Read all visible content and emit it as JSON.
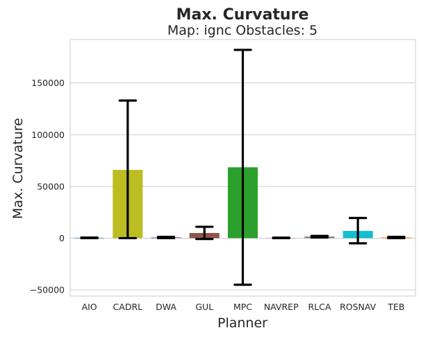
{
  "chart_data": {
    "type": "bar",
    "title": "Max. Curvature",
    "subtitle": "Map: ignc Obstacles: 5",
    "xlabel": "Planner",
    "ylabel": "Max. Curvature",
    "ylim": [
      -56000,
      192000
    ],
    "yticks": [
      -50000,
      0,
      50000,
      100000,
      150000
    ],
    "ytick_labels": [
      "−50000",
      "0",
      "50000",
      "100000",
      "150000"
    ],
    "grid": "horizontal",
    "categories": [
      "AIO",
      "CADRL",
      "DWA",
      "GUL",
      "MPC",
      "NAVREP",
      "RLCA",
      "ROSNAV",
      "TEB"
    ],
    "values": [
      400,
      66000,
      800,
      5000,
      68500,
      300,
      1500,
      7000,
      700
    ],
    "error_low": [
      0,
      0,
      0,
      -800,
      -45000,
      0,
      600,
      -5000,
      0
    ],
    "error_high": [
      600,
      133000,
      1200,
      11000,
      182000,
      500,
      2200,
      19500,
      1200
    ],
    "colors": [
      "#1f77b4",
      "#bcbd22",
      "#9467bd",
      "#8c564b",
      "#2ca02c",
      "#e377c2",
      "#7f7f7f",
      "#17becf",
      "#ff7f0e"
    ]
  }
}
